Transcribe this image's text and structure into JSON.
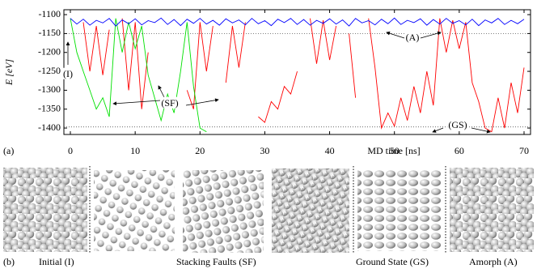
{
  "chart_data": {
    "type": "line",
    "ylabel": "E [eV]",
    "xlabel": "MD time [ns]",
    "panel_label": "(a)",
    "xlim": [
      -1,
      71
    ],
    "ylim": [
      -1417,
      -1087
    ],
    "xticks": [
      0,
      10,
      20,
      30,
      40,
      50,
      60,
      70
    ],
    "yticks": [
      -1100,
      -1150,
      -1200,
      -1250,
      -1300,
      -1350,
      -1400
    ],
    "hlines": [
      -1150,
      -1397
    ],
    "annotations": [
      "(A)",
      "(I)",
      "(SF)",
      "(GS)"
    ],
    "x": [
      0,
      1,
      2,
      3,
      4,
      5,
      6,
      7,
      8,
      9,
      10,
      11,
      12,
      13,
      14,
      15,
      16,
      17,
      18,
      19,
      20,
      21,
      22,
      23,
      24,
      25,
      26,
      27,
      28,
      29,
      30,
      31,
      32,
      33,
      34,
      35,
      36,
      37,
      38,
      39,
      40,
      41,
      42,
      43,
      44,
      45,
      46,
      47,
      48,
      49,
      50,
      51,
      52,
      53,
      54,
      55,
      56,
      57,
      58,
      59,
      60,
      61,
      62,
      63,
      64,
      65,
      66,
      67,
      68,
      69,
      70
    ],
    "series": [
      {
        "color": "#ff0000",
        "values": [
          null,
          null,
          -1120,
          -1250,
          -1130,
          -1260,
          -1140,
          null,
          -1110,
          -1300,
          -1120,
          -1350,
          -1200,
          null,
          null,
          null,
          null,
          null,
          -1300,
          -1350,
          -1120,
          -1250,
          -1130,
          null,
          -1280,
          -1130,
          -1240,
          -1120,
          null,
          -1370,
          -1385,
          -1330,
          -1350,
          -1290,
          -1310,
          -1250,
          null,
          -1110,
          -1230,
          -1115,
          -1220,
          -1130,
          null,
          -1150,
          -1320,
          null,
          -1110,
          -1240,
          -1400,
          -1360,
          -1395,
          -1320,
          -1380,
          -1290,
          -1360,
          -1250,
          -1340,
          -1110,
          -1200,
          -1115,
          -1190,
          -1120,
          -1280,
          -1330,
          -1400,
          -1410,
          -1320,
          -1400,
          -1280,
          -1360,
          -1240
        ]
      },
      {
        "color": "#00e000",
        "values": [
          -1110,
          -1200,
          -1250,
          -1300,
          -1350,
          -1320,
          -1370,
          -1110,
          -1200,
          -1120,
          -1190,
          -1130,
          -1260,
          -1320,
          -1380,
          -1310,
          -1360,
          -1250,
          -1120,
          -1290,
          -1400,
          -1410,
          null,
          null,
          null,
          null,
          null,
          null,
          null,
          null,
          null,
          null,
          null,
          null,
          null,
          null,
          null,
          null,
          null,
          null,
          null,
          null,
          null,
          null,
          null,
          null,
          null,
          null,
          null,
          null,
          null,
          null,
          null,
          null,
          null,
          null,
          null,
          null,
          null,
          null,
          null,
          null,
          null,
          null,
          null,
          null,
          null,
          null,
          null,
          null,
          null
        ]
      },
      {
        "color": "#0000ff",
        "values": [
          -1110,
          -1125,
          -1112,
          -1128,
          -1115,
          -1122,
          -1110,
          -1130,
          -1114,
          -1124,
          -1111,
          -1127,
          -1116,
          -1121,
          -1109,
          -1126,
          -1113,
          -1129,
          -1112,
          -1123,
          -1110,
          -1125,
          -1115,
          -1128,
          -1111,
          -1122,
          -1114,
          -1127,
          -1110,
          -1124,
          -1116,
          -1129,
          -1112,
          -1121,
          -1110,
          -1126,
          -1113,
          -1128,
          -1115,
          -1123,
          -1111,
          -1125,
          -1114,
          -1130,
          -1110,
          -1122,
          -1116,
          -1127,
          -1112,
          -1124,
          -1109,
          -1126,
          -1115,
          -1121,
          -1111,
          -1128,
          -1113,
          -1125,
          -1110,
          -1123,
          -1116,
          -1127,
          -1112,
          -1129,
          -1114,
          -1122,
          -1110,
          -1126,
          -1115,
          -1124,
          -1112
        ]
      }
    ]
  },
  "panel_b": {
    "label": "(b)",
    "captions": [
      "Initial (I)",
      "Stacking Faults (SF)",
      "Ground State (GS)",
      "Amorph (A)"
    ]
  }
}
